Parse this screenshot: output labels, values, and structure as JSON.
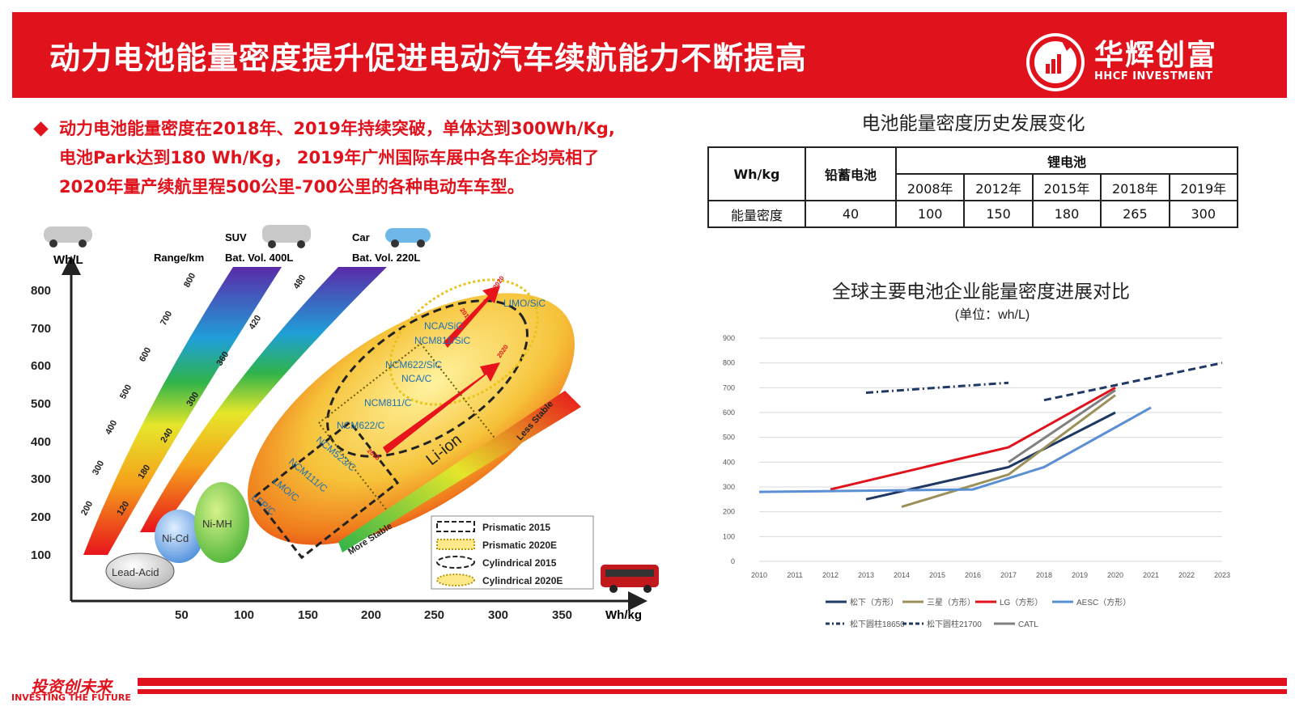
{
  "header": {
    "title": "动力电池能量密度提升促进电动汽车续航能力不断提高",
    "logo_cn": "华辉创富",
    "logo_en": "HHCF INVESTMENT"
  },
  "bullet": {
    "line1": "动力电池能量密度在2018年、2019年持续突破，单体达到300Wh/Kg,",
    "line2": "电池Park达到180 Wh/Kg， 2019年广州国际车展中各车企均亮相了",
    "line3": "2020年量产续航里程500公里-700公里的各种电动车车型。"
  },
  "table": {
    "title": "电池能量密度历史发展变化",
    "unit_header": "Wh/kg",
    "lead_header": "铅蓄电池",
    "lithium_header": "锂电池",
    "years": [
      "2008年",
      "2012年",
      "2015年",
      "2018年",
      "2019年"
    ],
    "row_label": "能量密度",
    "lead_value": "40",
    "values": [
      "100",
      "150",
      "180",
      "265",
      "300"
    ]
  },
  "figure": {
    "y_unit": "Wh/L",
    "x_unit": "Wh/kg",
    "y_ticks": [
      "800",
      "700",
      "600",
      "500",
      "400",
      "300",
      "200",
      "100"
    ],
    "x_ticks": [
      "50",
      "100",
      "150",
      "200",
      "250",
      "300",
      "350"
    ],
    "suv_label": "SUV",
    "suv_range": "Range/km",
    "suv_vol": "Bat. Vol. 400L",
    "car_label": "Car",
    "car_vol": "Bat. Vol. 220L",
    "band1_ticks": [
      "200",
      "300",
      "400",
      "500",
      "600",
      "700",
      "800"
    ],
    "band2_ticks": [
      "120",
      "180",
      "240",
      "300",
      "360",
      "420",
      "480"
    ],
    "chemistries": [
      "Lead-Acid",
      "Ni-Cd",
      "Ni-MH",
      "Li-ion"
    ],
    "cells": [
      "LIMO/SiC",
      "NCA/SiC",
      "NCM811/SiC",
      "NCM622/SiC",
      "NCA/C",
      "NCM811/C",
      "NCM622/C",
      "NCM523/C",
      "NCM111/C",
      "LMO/C",
      "LFP/C"
    ],
    "years_arrow": [
      "2015",
      "2020",
      "2015",
      "2020"
    ],
    "less_stable": "Less Stable",
    "more_stable": "More Stable",
    "legend": [
      "Prismatic  2015",
      "Prismatic  2020E",
      "Cylindrical 2015",
      "Cylindrical 2020E"
    ]
  },
  "chart_data": {
    "type": "line",
    "title": "全球主要电池企业能量密度进展对比",
    "subtitle": "(单位：wh/L)",
    "ylim": [
      0,
      900
    ],
    "y_ticks": [
      0,
      100,
      200,
      300,
      400,
      500,
      600,
      700,
      800,
      900
    ],
    "x": [
      "2010",
      "2011",
      "2012",
      "2013",
      "2014",
      "2015",
      "2016",
      "2017",
      "2018",
      "2019",
      "2020",
      "2021",
      "2022",
      "2023"
    ],
    "series": [
      {
        "name": "松下（方形）",
        "color": "#1f3864",
        "dash": "solid",
        "points": [
          [
            2013,
            250
          ],
          [
            2017,
            380
          ],
          [
            2020,
            600
          ]
        ]
      },
      {
        "name": "三星（方形）",
        "color": "#9b8f5a",
        "dash": "solid",
        "points": [
          [
            2014,
            220
          ],
          [
            2017,
            350
          ],
          [
            2020,
            670
          ]
        ]
      },
      {
        "name": "LG（方形）",
        "color": "#e0131d",
        "dash": "solid",
        "points": [
          [
            2012,
            290
          ],
          [
            2017,
            460
          ],
          [
            2020,
            700
          ]
        ]
      },
      {
        "name": "AESC（方形）",
        "color": "#5b8fd4",
        "dash": "solid",
        "points": [
          [
            2010,
            280
          ],
          [
            2016,
            290
          ],
          [
            2018,
            380
          ],
          [
            2021,
            620
          ]
        ]
      },
      {
        "name": "松下圆柱18650",
        "color": "#1f3864",
        "dash": "dashdot",
        "points": [
          [
            2013,
            680
          ],
          [
            2017,
            720
          ]
        ]
      },
      {
        "name": "松下圆柱21700",
        "color": "#1f3864",
        "dash": "dash",
        "points": [
          [
            2018,
            650
          ],
          [
            2023,
            800
          ]
        ]
      },
      {
        "name": "CATL",
        "color": "#808080",
        "dash": "solid",
        "points": [
          [
            2017,
            400
          ],
          [
            2020,
            690
          ]
        ]
      }
    ]
  },
  "footer": {
    "cn": "投资创未来",
    "en": "INVESTING THE FUTURE"
  },
  "colors": {
    "brand": "#e0131d"
  }
}
